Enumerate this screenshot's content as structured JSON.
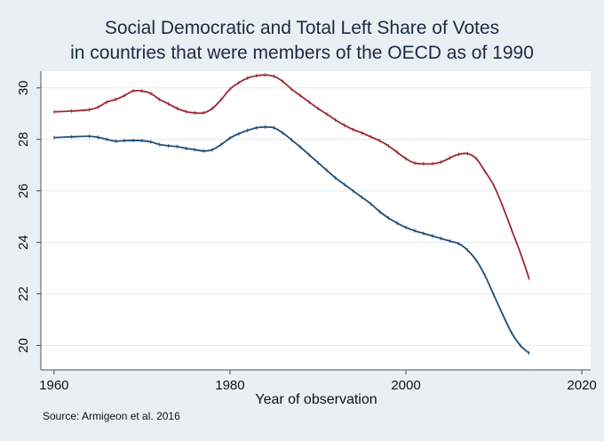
{
  "chart_data": {
    "type": "line",
    "title": [
      "Social Democratic and Total Left Share of Votes",
      "in countries that were members of the OECD as of 1990"
    ],
    "xlabel": "Year of observation",
    "ylabel": "",
    "xlim": [
      1958.5,
      2021
    ],
    "ylim": [
      19.05,
      30.65
    ],
    "xticks": [
      1960,
      1980,
      2000,
      2020
    ],
    "yticks": [
      20,
      22,
      24,
      26,
      28,
      30
    ],
    "grid": "horizontal",
    "legend": "none",
    "source_note": "Source: Armigeon et al. 2016",
    "colors": {
      "total_left": "#9b2a36",
      "social_democratic": "#1f4e79",
      "background": "#e9eff2",
      "plot_bg": "#ffffff",
      "grid": "#e6eef1"
    },
    "series": [
      {
        "name": "Total Left",
        "color": "#9b2a36",
        "x": [
          1960,
          1962,
          1964,
          1965,
          1966,
          1967,
          1968,
          1969,
          1970,
          1971,
          1972,
          1973,
          1974,
          1975,
          1976,
          1977,
          1978,
          1979,
          1980,
          1981,
          1982,
          1983,
          1984,
          1985,
          1986,
          1987,
          1988,
          1989,
          1990,
          1991,
          1992,
          1993,
          1994,
          1995,
          1996,
          1997,
          1998,
          1999,
          2000,
          2001,
          2002,
          2003,
          2004,
          2005,
          2006,
          2007,
          2008,
          2009,
          2010,
          2011,
          2012,
          2013,
          2014
        ],
        "y": [
          29.07,
          29.1,
          29.15,
          29.25,
          29.45,
          29.55,
          29.7,
          29.88,
          29.88,
          29.78,
          29.55,
          29.38,
          29.2,
          29.08,
          29.03,
          29.03,
          29.2,
          29.55,
          29.95,
          30.2,
          30.38,
          30.47,
          30.5,
          30.45,
          30.25,
          29.95,
          29.7,
          29.45,
          29.2,
          28.98,
          28.75,
          28.55,
          28.38,
          28.25,
          28.1,
          27.95,
          27.75,
          27.5,
          27.25,
          27.08,
          27.05,
          27.05,
          27.12,
          27.28,
          27.42,
          27.45,
          27.25,
          26.75,
          26.2,
          25.4,
          24.5,
          23.6,
          22.6
        ]
      },
      {
        "name": "Social Democratic",
        "color": "#1f4e79",
        "x": [
          1960,
          1962,
          1964,
          1965,
          1966,
          1967,
          1968,
          1969,
          1970,
          1971,
          1972,
          1973,
          1974,
          1975,
          1976,
          1977,
          1978,
          1979,
          1980,
          1981,
          1982,
          1983,
          1984,
          1985,
          1986,
          1987,
          1988,
          1989,
          1990,
          1991,
          1992,
          1993,
          1994,
          1995,
          1996,
          1997,
          1998,
          1999,
          2000,
          2001,
          2002,
          2003,
          2004,
          2005,
          2006,
          2007,
          2008,
          2009,
          2010,
          2011,
          2012,
          2013,
          2014
        ],
        "y": [
          28.07,
          28.1,
          28.12,
          28.08,
          28.0,
          27.93,
          27.95,
          27.96,
          27.95,
          27.9,
          27.8,
          27.75,
          27.72,
          27.65,
          27.6,
          27.55,
          27.6,
          27.8,
          28.05,
          28.22,
          28.35,
          28.45,
          28.48,
          28.45,
          28.25,
          27.98,
          27.7,
          27.4,
          27.1,
          26.8,
          26.5,
          26.25,
          26.0,
          25.75,
          25.5,
          25.2,
          24.95,
          24.75,
          24.58,
          24.45,
          24.35,
          24.25,
          24.15,
          24.05,
          23.95,
          23.7,
          23.3,
          22.7,
          21.95,
          21.2,
          20.5,
          20.0,
          19.7
        ]
      }
    ]
  }
}
